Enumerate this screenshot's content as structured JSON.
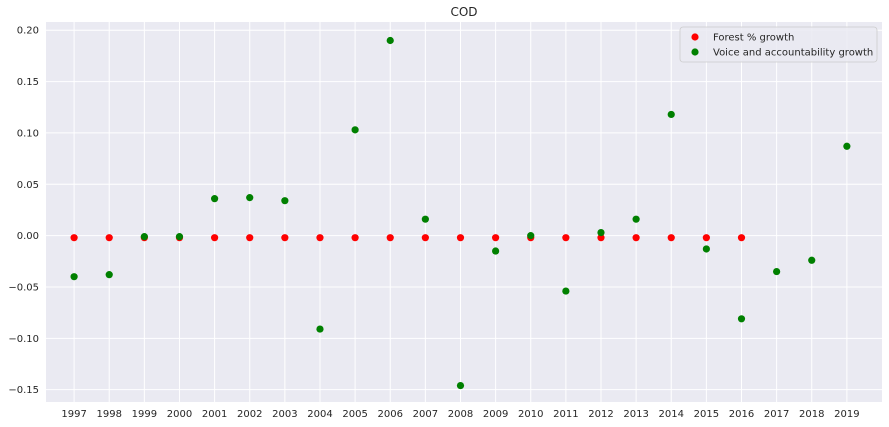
{
  "chart_data": {
    "type": "scatter",
    "title": "COD",
    "xlabel": "",
    "ylabel": "",
    "grid": true,
    "legend_position": "top-right",
    "x_ticks": [
      "1997",
      "1998",
      "1999",
      "2000",
      "2001",
      "2002",
      "2003",
      "2004",
      "2005",
      "2006",
      "2007",
      "2008",
      "2009",
      "2010",
      "2011",
      "2012",
      "2013",
      "2014",
      "2015",
      "2016",
      "2017",
      "2018",
      "2019"
    ],
    "y_ticks": [
      -0.15,
      -0.1,
      -0.05,
      0.0,
      0.05,
      0.1,
      0.15,
      0.2
    ],
    "y_tick_labels": [
      "−0.15",
      "−0.10",
      "−0.05",
      "0.00",
      "0.05",
      "0.10",
      "0.15",
      "0.20"
    ],
    "xlim": [
      1996.2,
      2020.0
    ],
    "ylim": [
      -0.162,
      0.208
    ],
    "series": [
      {
        "name": "Forest % growth",
        "color": "#ff0000",
        "x": [
          1997,
          1998,
          1999,
          2000,
          2001,
          2002,
          2003,
          2004,
          2005,
          2006,
          2007,
          2008,
          2009,
          2010,
          2011,
          2012,
          2013,
          2014,
          2015,
          2016
        ],
        "y": [
          -0.002,
          -0.002,
          -0.002,
          -0.002,
          -0.002,
          -0.002,
          -0.002,
          -0.002,
          -0.002,
          -0.002,
          -0.002,
          -0.002,
          -0.002,
          -0.002,
          -0.002,
          -0.002,
          -0.002,
          -0.002,
          -0.002,
          -0.002
        ]
      },
      {
        "name": "Voice and accountability growth",
        "color": "#008000",
        "x": [
          1997,
          1998,
          1999,
          2000,
          2001,
          2002,
          2003,
          2004,
          2005,
          2006,
          2007,
          2008,
          2009,
          2010,
          2011,
          2012,
          2013,
          2014,
          2015,
          2016,
          2017,
          2018,
          2019
        ],
        "y": [
          -0.04,
          -0.038,
          -0.001,
          -0.001,
          0.036,
          0.037,
          0.034,
          -0.091,
          0.103,
          0.19,
          0.016,
          -0.146,
          -0.015,
          0.0,
          -0.054,
          0.003,
          0.016,
          0.118,
          -0.013,
          -0.081,
          -0.035,
          -0.024,
          0.087
        ]
      }
    ]
  }
}
